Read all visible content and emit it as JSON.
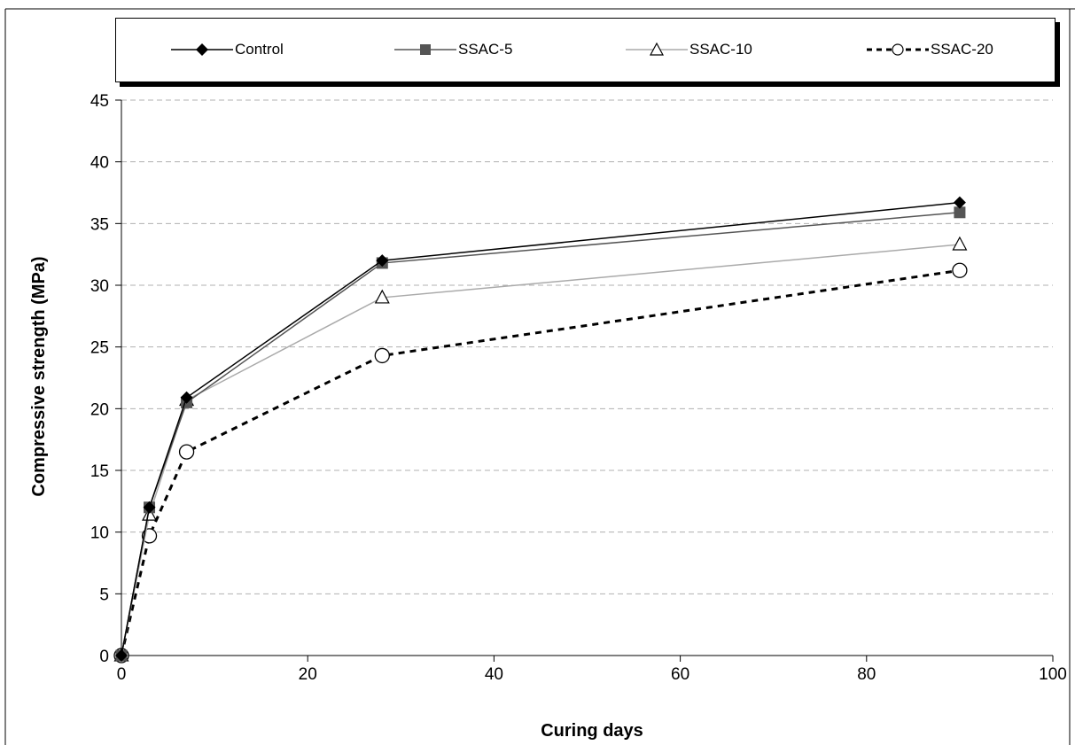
{
  "chart_data": {
    "type": "line",
    "title": "",
    "xlabel": "Curing days",
    "ylabel": "Compressive strength (MPa)",
    "xlim": [
      0,
      100
    ],
    "ylim": [
      0,
      45
    ],
    "xticks": [
      0,
      20,
      40,
      60,
      80,
      100
    ],
    "yticks": [
      0,
      5,
      10,
      15,
      20,
      25,
      30,
      35,
      40,
      45
    ],
    "grid": "horizontal dashed",
    "legend_position": "top",
    "x": [
      0,
      3,
      7,
      28,
      90
    ],
    "series": [
      {
        "name": "Control",
        "values": [
          0,
          12.0,
          20.9,
          32.0,
          36.7
        ],
        "color": "#000000",
        "marker": "diamond",
        "line": "solid"
      },
      {
        "name": "SSAC-5",
        "values": [
          0,
          12.0,
          20.5,
          31.8,
          35.9
        ],
        "color": "#555555",
        "marker": "square",
        "line": "solid"
      },
      {
        "name": "SSAC-10",
        "values": [
          0,
          11.4,
          20.7,
          29.0,
          33.3
        ],
        "color": "#aaaaaa",
        "marker": "triangle",
        "line": "solid"
      },
      {
        "name": "SSAC-20",
        "values": [
          0,
          9.7,
          16.5,
          24.3,
          31.2
        ],
        "color": "#000000",
        "marker": "circle",
        "line": "dashed"
      }
    ]
  }
}
